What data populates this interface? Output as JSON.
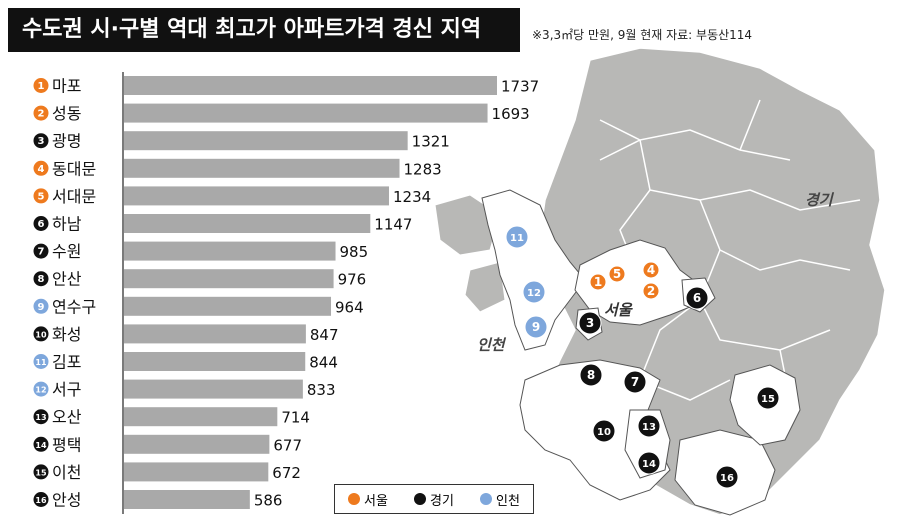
{
  "header": {
    "title": "수도권 시·구별 역대 최고가 아파트가격 경신 지역",
    "note": "※3,3㎡당 만원, 9월 현재   자료: 부동산114"
  },
  "colors": {
    "seoul": "#ee7a1e",
    "gyeonggi": "#111111",
    "incheon": "#7ea7dc",
    "bar": "#a9a9a9"
  },
  "chart_data": {
    "type": "bar",
    "orientation": "horizontal",
    "categories": [
      "마포",
      "성동",
      "광명",
      "동대문",
      "서대문",
      "하남",
      "수원",
      "안산",
      "연수구",
      "화성",
      "김포",
      "서구",
      "오산",
      "평택",
      "이천",
      "안성"
    ],
    "ranks": [
      "1",
      "2",
      "3",
      "4",
      "5",
      "6",
      "7",
      "8",
      "9",
      "10",
      "11",
      "12",
      "13",
      "14",
      "15",
      "16"
    ],
    "values": [
      1737,
      1693,
      1321,
      1283,
      1234,
      1147,
      985,
      976,
      964,
      847,
      844,
      833,
      714,
      677,
      672,
      586
    ],
    "groups": [
      "seoul",
      "seoul",
      "gyeonggi",
      "seoul",
      "seoul",
      "gyeonggi",
      "gyeonggi",
      "gyeonggi",
      "incheon",
      "gyeonggi",
      "incheon",
      "incheon",
      "gyeonggi",
      "gyeonggi",
      "gyeonggi",
      "gyeonggi"
    ],
    "xlim": [
      0,
      1737
    ],
    "unit": "3.3㎡당 만원"
  },
  "map": {
    "labels": {
      "gyeonggi": "경기",
      "seoul": "서울",
      "incheon": "인천"
    },
    "markers": [
      {
        "n": "1",
        "group": "seoul"
      },
      {
        "n": "5",
        "group": "seoul"
      },
      {
        "n": "4",
        "group": "seoul"
      },
      {
        "n": "2",
        "group": "seoul"
      },
      {
        "n": "6",
        "group": "gyeonggi"
      },
      {
        "n": "3",
        "group": "gyeonggi"
      },
      {
        "n": "11",
        "group": "incheon"
      },
      {
        "n": "12",
        "group": "incheon"
      },
      {
        "n": "9",
        "group": "incheon"
      },
      {
        "n": "8",
        "group": "gyeonggi"
      },
      {
        "n": "7",
        "group": "gyeonggi"
      },
      {
        "n": "10",
        "group": "gyeonggi"
      },
      {
        "n": "13",
        "group": "gyeonggi"
      },
      {
        "n": "14",
        "group": "gyeonggi"
      },
      {
        "n": "15",
        "group": "gyeonggi"
      },
      {
        "n": "16",
        "group": "gyeonggi"
      }
    ]
  },
  "legend": [
    {
      "group": "seoul",
      "label": "서울"
    },
    {
      "group": "gyeonggi",
      "label": "경기"
    },
    {
      "group": "incheon",
      "label": "인천"
    }
  ]
}
